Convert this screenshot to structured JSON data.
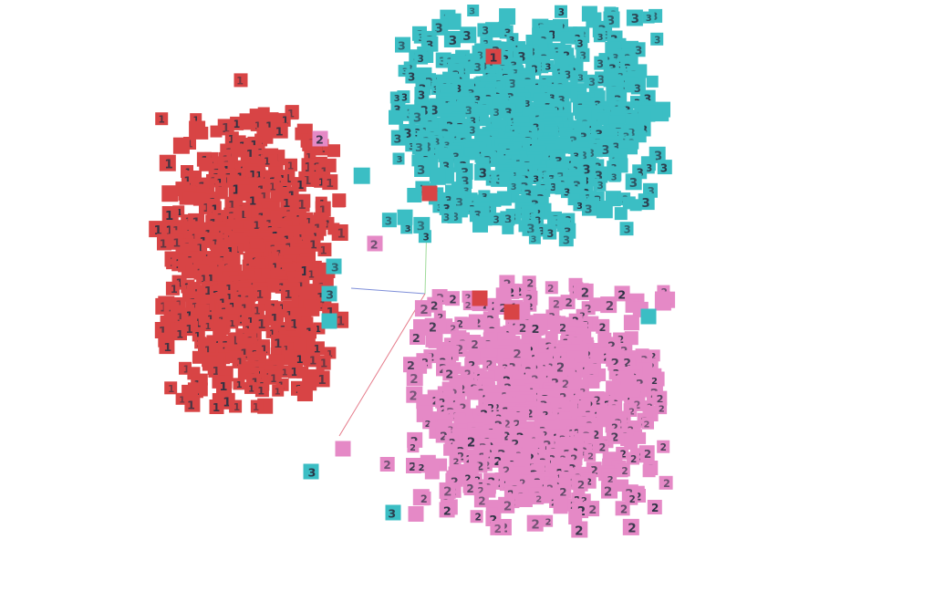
{
  "chart_data": {
    "type": "scatter",
    "title": "",
    "xlabel": "",
    "ylabel": "",
    "grid": false,
    "legend": "none",
    "series": [
      {
        "label": "1",
        "color": "#d84445",
        "center": [
          -1.9,
          0.35
        ],
        "spread": [
          0.9,
          1.55
        ],
        "count": 620
      },
      {
        "label": "3",
        "color": "#3bbec4",
        "center": [
          1.15,
          1.85
        ],
        "spread": [
          1.35,
          1.15
        ],
        "count": 720
      },
      {
        "label": "2",
        "color": "#e589c6",
        "center": [
          1.25,
          -1.2
        ],
        "spread": [
          1.3,
          1.25
        ],
        "count": 760
      }
    ],
    "outliers": [
      {
        "label": "1",
        "color": "#d84445",
        "x": 0.75,
        "y": 2.6
      },
      {
        "label": "1",
        "color": "#d84445",
        "x": 0.05,
        "y": 1.1
      },
      {
        "label": "1",
        "color": "#d84445",
        "x": 0.6,
        "y": -0.05
      },
      {
        "label": "1",
        "color": "#d84445",
        "x": 0.95,
        "y": -0.2
      },
      {
        "label": "3",
        "color": "#3bbec4",
        "x": -1.0,
        "y": 0.3
      },
      {
        "label": "3",
        "color": "#3bbec4",
        "x": -1.05,
        "y": 0.0
      },
      {
        "label": "3",
        "color": "#3bbec4",
        "x": -1.05,
        "y": -0.3
      },
      {
        "label": "3",
        "color": "#3bbec4",
        "x": -1.25,
        "y": -1.95
      },
      {
        "label": "3",
        "color": "#3bbec4",
        "x": -0.35,
        "y": -2.4
      },
      {
        "label": "3",
        "color": "#3bbec4",
        "x": 2.45,
        "y": -0.25
      },
      {
        "label": "2",
        "color": "#e589c6",
        "x": -1.15,
        "y": 1.7
      },
      {
        "label": "2",
        "color": "#e589c6",
        "x": -0.55,
        "y": 0.55
      },
      {
        "label": "2",
        "color": "#e589c6",
        "x": -0.9,
        "y": -1.7
      }
    ]
  }
}
